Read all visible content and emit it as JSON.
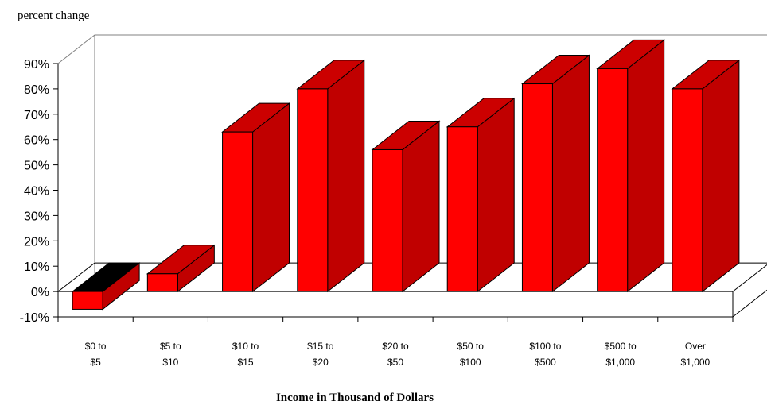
{
  "chart_data": {
    "type": "bar",
    "title": "",
    "ylabel": "percent change",
    "xlabel": "Income in Thousand of Dollars",
    "ylim": [
      -10,
      90
    ],
    "yticks": [
      "-10%",
      "0%",
      "10%",
      "20%",
      "30%",
      "40%",
      "50%",
      "60%",
      "70%",
      "80%",
      "90%"
    ],
    "categories": [
      [
        "$0 to",
        "$5"
      ],
      [
        "$5 to",
        "$10"
      ],
      [
        "$10 to",
        "$15"
      ],
      [
        "$15 to",
        "$20"
      ],
      [
        "$20 to",
        "$50"
      ],
      [
        "$50 to",
        "$100"
      ],
      [
        "$100 to",
        "$500"
      ],
      [
        "$500 to",
        "$1,000"
      ],
      [
        "Over",
        "$1,000"
      ]
    ],
    "values": [
      -7,
      7,
      63,
      80,
      56,
      65,
      82,
      88,
      80
    ],
    "colors": {
      "bar_front": "#ff0000",
      "bar_side": "#c00000",
      "bar_top": "#cc0000",
      "negative_top": "#000000",
      "axis": "#000000",
      "wall": "#808080"
    }
  }
}
